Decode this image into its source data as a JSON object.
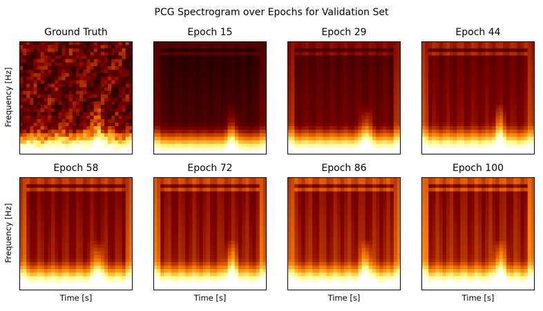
{
  "chart_data": {
    "type": "heatmap",
    "title": "PCG Spectrogram over Epochs for Validation Set",
    "xlabel": "Time [s]",
    "ylabel": "Frequency [Hz]",
    "colormap": "afmhot",
    "xticks": false,
    "yticks": false,
    "grid": false,
    "layout": "2 rows x 4 columns",
    "panels": [
      {
        "title": "Ground Truth",
        "kind": "truth",
        "blur": 0.0
      },
      {
        "title": "Epoch 15",
        "kind": "recon",
        "blur": 1.0
      },
      {
        "title": "Epoch 29",
        "kind": "recon",
        "blur": 0.72
      },
      {
        "title": "Epoch 44",
        "kind": "recon",
        "blur": 0.55
      },
      {
        "title": "Epoch 58",
        "kind": "recon",
        "blur": 0.42
      },
      {
        "title": "Epoch 72",
        "kind": "recon",
        "blur": 0.35
      },
      {
        "title": "Epoch 86",
        "kind": "recon",
        "blur": 0.3
      },
      {
        "title": "Epoch 100",
        "kind": "recon",
        "blur": 0.28
      }
    ]
  }
}
